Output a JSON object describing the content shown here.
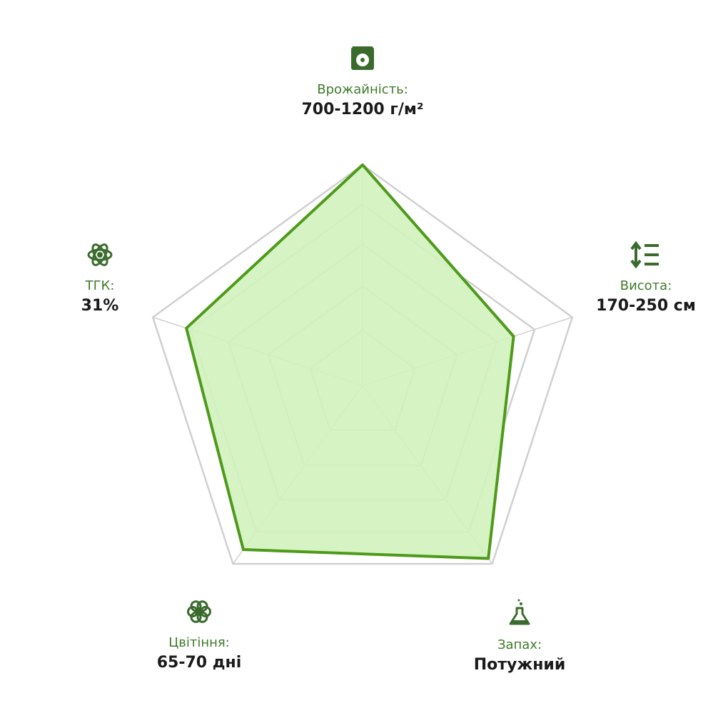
{
  "chart_data": {
    "type": "radar",
    "categories": [
      "Врожайність:",
      "Висота:",
      "Запах:",
      "Цвітіння:",
      "ТГК:"
    ],
    "descriptions": [
      "700-1200 г/м²",
      "170-250 см",
      "Потужний",
      "65-70 дні",
      "31%"
    ],
    "values": [
      100,
      72,
      97,
      92,
      84
    ],
    "rlim": [
      0,
      100
    ],
    "rticks": [
      25,
      45,
      64,
      82,
      100
    ],
    "grid": true,
    "color": "#4e9a1a",
    "fill": "#d2f2bd"
  }
}
